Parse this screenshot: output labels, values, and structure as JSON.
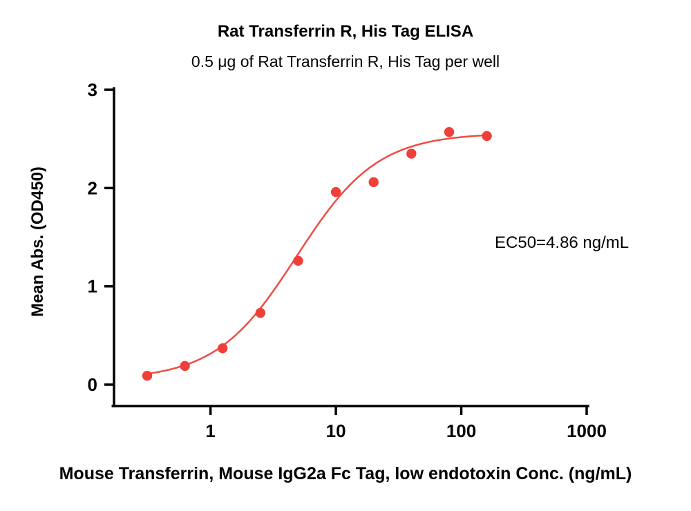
{
  "figure": {
    "title": "Rat Transferrin R, His Tag ELISA",
    "subtitle": "0.5 μg of Rat Transferrin R, His Tag per well",
    "ylabel": "Mean Abs. (OD450)",
    "xlabel": "Mouse Transferrin, Mouse IgG2a Fc Tag, low endotoxin Conc. (ng/mL)",
    "annotation": "EC50=4.86 ng/mL"
  },
  "chart_data": {
    "type": "scatter",
    "title": "Rat Transferrin R, His Tag ELISA",
    "subtitle": "0.5 μg of Rat Transferrin R, His Tag per well",
    "xlabel": "Mouse Transferrin, Mouse IgG2a Fc Tag, low endotoxin Conc. (ng/mL)",
    "ylabel": "Mean Abs. (OD450)",
    "annotation": "EC50=4.86 ng/mL",
    "x_scale": "log",
    "x": [
      0.3125,
      0.625,
      1.25,
      2.5,
      5,
      10,
      20,
      40,
      80,
      160
    ],
    "y": [
      0.09,
      0.19,
      0.37,
      0.73,
      1.26,
      1.96,
      2.06,
      2.35,
      2.57,
      2.53
    ],
    "x_ticks": [
      1,
      10,
      100,
      1000
    ],
    "y_ticks": [
      0,
      1,
      2,
      3
    ],
    "xlim": [
      0.17,
      1000
    ],
    "ylim": [
      0,
      3
    ],
    "fit": {
      "model": "4PL",
      "bottom": 0.05,
      "top": 2.56,
      "ec50": 4.86,
      "hill": 1.35
    },
    "ec50_ng_ml": 4.86,
    "grid": false,
    "legend": "none",
    "point_color": "#EE4038",
    "line_color": "#F04B42",
    "axis_color": "#000000"
  }
}
